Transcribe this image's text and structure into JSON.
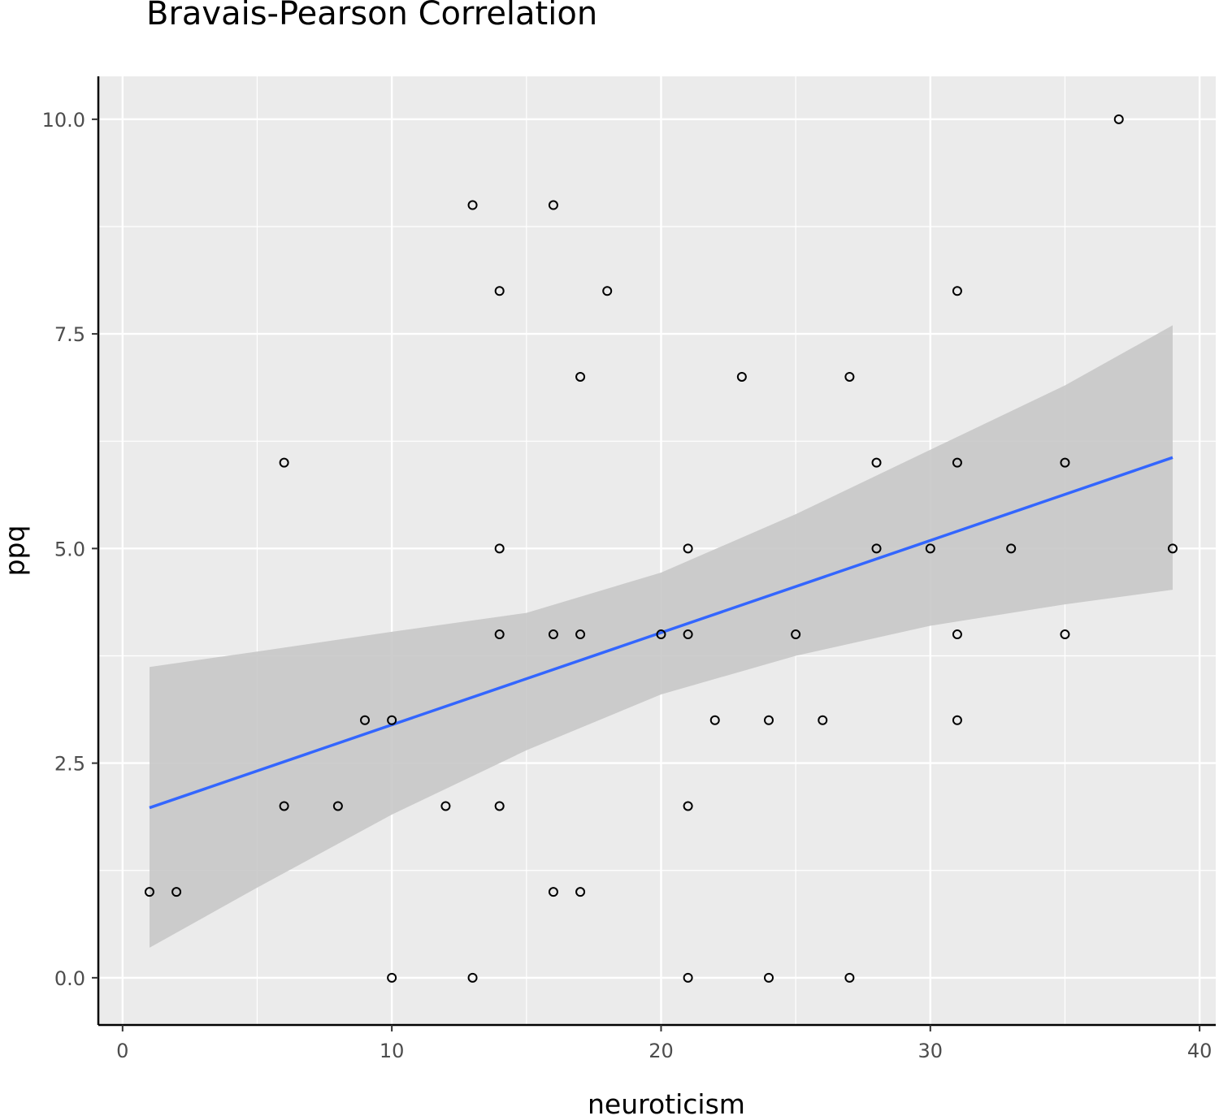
{
  "chart_data": {
    "type": "scatter",
    "title": "Bravais-Pearson Correlation",
    "xlabel": "neuroticism",
    "ylabel": "ppq",
    "xlim": [
      -0.9,
      40.6
    ],
    "ylim": [
      -0.55,
      10.5
    ],
    "x_ticks": [
      0,
      10,
      20,
      30,
      40
    ],
    "x_tick_labels": [
      "0",
      "10",
      "20",
      "30",
      "40"
    ],
    "y_ticks": [
      0.0,
      2.5,
      5.0,
      7.5,
      10.0
    ],
    "y_tick_labels": [
      "0.0",
      "2.5",
      "5.0",
      "7.5",
      "10.0"
    ],
    "grid": true,
    "background": "#ebebeb",
    "point_color": "#000000",
    "line_color": "#3366ff",
    "band_color": "#c8c8c8",
    "points": [
      {
        "x": 1,
        "y": 1
      },
      {
        "x": 2,
        "y": 1
      },
      {
        "x": 6,
        "y": 6
      },
      {
        "x": 6,
        "y": 2
      },
      {
        "x": 8,
        "y": 2
      },
      {
        "x": 9,
        "y": 3
      },
      {
        "x": 10,
        "y": 3
      },
      {
        "x": 10,
        "y": 0
      },
      {
        "x": 12,
        "y": 2
      },
      {
        "x": 13,
        "y": 9
      },
      {
        "x": 13,
        "y": 0
      },
      {
        "x": 14,
        "y": 8
      },
      {
        "x": 14,
        "y": 5
      },
      {
        "x": 14,
        "y": 4
      },
      {
        "x": 14,
        "y": 2
      },
      {
        "x": 16,
        "y": 9
      },
      {
        "x": 16,
        "y": 4
      },
      {
        "x": 16,
        "y": 1
      },
      {
        "x": 17,
        "y": 7
      },
      {
        "x": 17,
        "y": 4
      },
      {
        "x": 17,
        "y": 1
      },
      {
        "x": 18,
        "y": 8
      },
      {
        "x": 20,
        "y": 4
      },
      {
        "x": 21,
        "y": 5
      },
      {
        "x": 21,
        "y": 4
      },
      {
        "x": 21,
        "y": 2
      },
      {
        "x": 21,
        "y": 0
      },
      {
        "x": 22,
        "y": 3
      },
      {
        "x": 23,
        "y": 7
      },
      {
        "x": 24,
        "y": 3
      },
      {
        "x": 24,
        "y": 0
      },
      {
        "x": 25,
        "y": 4
      },
      {
        "x": 26,
        "y": 3
      },
      {
        "x": 27,
        "y": 7
      },
      {
        "x": 27,
        "y": 0
      },
      {
        "x": 28,
        "y": 6
      },
      {
        "x": 28,
        "y": 5
      },
      {
        "x": 30,
        "y": 5
      },
      {
        "x": 31,
        "y": 8
      },
      {
        "x": 31,
        "y": 6
      },
      {
        "x": 31,
        "y": 4
      },
      {
        "x": 31,
        "y": 3
      },
      {
        "x": 33,
        "y": 5
      },
      {
        "x": 35,
        "y": 6
      },
      {
        "x": 35,
        "y": 4
      },
      {
        "x": 37,
        "y": 10
      },
      {
        "x": 39,
        "y": 5
      }
    ],
    "regression": {
      "x": [
        1,
        39
      ],
      "y": [
        1.98,
        6.06
      ]
    },
    "confidence_band": {
      "x": [
        1,
        5,
        10,
        15,
        20,
        25,
        30,
        35,
        39
      ],
      "lower": [
        0.35,
        1.05,
        1.9,
        2.65,
        3.3,
        3.75,
        4.1,
        4.35,
        4.52
      ],
      "upper": [
        3.62,
        3.8,
        4.03,
        4.25,
        4.72,
        5.4,
        6.15,
        6.9,
        7.6
      ]
    }
  }
}
